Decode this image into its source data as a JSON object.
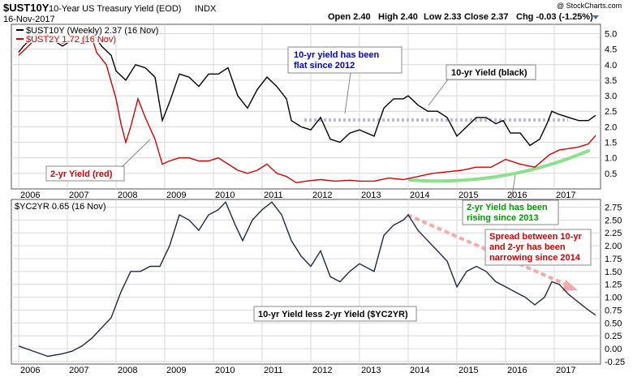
{
  "header": {
    "symbol": "$UST10Y",
    "name": "10-Year US Treasury Yield (EOD)",
    "exchange": "INDX",
    "date": "16-Nov-2017",
    "open": "Open 2.40",
    "high": "High 2.40",
    "low": "Low 2.33",
    "close": "Close 2.37",
    "chg": "Chg -0.03 (-1.25%)",
    "watermark": "@ StockCharts.com"
  },
  "colors": {
    "ust10": "#000000",
    "ust2": "#d60000",
    "spread": "#1f2a44",
    "flat_line": "#b9b9ee",
    "rising_arc": "#8de08d",
    "narrow_arrow": "#f6a9a9",
    "blue_text": "#0000cc",
    "red_text": "#d60000",
    "green_text": "#009900",
    "grid": "#d8d8d8"
  },
  "chart_data": [
    {
      "type": "line",
      "title": "10-Year US Treasury Yield (EOD)",
      "legend": [
        "$UST10Y (Weekly) 2.37 (16 Nov)",
        "$UST2Y 1.72 (16 Nov)"
      ],
      "x_ticks": [
        "2006",
        "2007",
        "2008",
        "2009",
        "2010",
        "2011",
        "2012",
        "2013",
        "2014",
        "2015",
        "2016",
        "2017"
      ],
      "y_ticks": [
        "0.5",
        "1.0",
        "1.5",
        "2.0",
        "2.5",
        "3.0",
        "3.5",
        "4.0",
        "4.5",
        "5.0"
      ],
      "ylim": [
        0,
        5.3
      ],
      "series": [
        {
          "name": "$UST10Y",
          "points": [
            [
              2006.0,
              4.4
            ],
            [
              2006.1,
              4.6
            ],
            [
              2006.3,
              4.9
            ],
            [
              2006.5,
              5.1
            ],
            [
              2006.7,
              4.8
            ],
            [
              2006.9,
              4.6
            ],
            [
              2007.1,
              4.8
            ],
            [
              2007.3,
              4.7
            ],
            [
              2007.5,
              5.1
            ],
            [
              2007.7,
              4.6
            ],
            [
              2007.9,
              4.3
            ],
            [
              2008.0,
              3.8
            ],
            [
              2008.2,
              3.5
            ],
            [
              2008.4,
              4.0
            ],
            [
              2008.6,
              3.9
            ],
            [
              2008.8,
              3.6
            ],
            [
              2008.95,
              2.2
            ],
            [
              2009.1,
              2.8
            ],
            [
              2009.3,
              3.7
            ],
            [
              2009.5,
              3.6
            ],
            [
              2009.7,
              3.3
            ],
            [
              2009.9,
              3.7
            ],
            [
              2010.1,
              3.7
            ],
            [
              2010.3,
              3.9
            ],
            [
              2010.5,
              3.0
            ],
            [
              2010.7,
              2.6
            ],
            [
              2010.9,
              3.2
            ],
            [
              2011.1,
              3.6
            ],
            [
              2011.3,
              3.3
            ],
            [
              2011.5,
              2.9
            ],
            [
              2011.6,
              2.2
            ],
            [
              2011.8,
              2.0
            ],
            [
              2012.0,
              1.9
            ],
            [
              2012.2,
              2.3
            ],
            [
              2012.4,
              1.6
            ],
            [
              2012.6,
              1.5
            ],
            [
              2012.8,
              1.8
            ],
            [
              2013.0,
              1.9
            ],
            [
              2013.3,
              1.7
            ],
            [
              2013.5,
              2.6
            ],
            [
              2013.7,
              2.9
            ],
            [
              2013.9,
              2.9
            ],
            [
              2014.0,
              3.0
            ],
            [
              2014.2,
              2.7
            ],
            [
              2014.4,
              2.5
            ],
            [
              2014.6,
              2.5
            ],
            [
              2014.8,
              2.3
            ],
            [
              2015.0,
              1.7
            ],
            [
              2015.2,
              2.0
            ],
            [
              2015.4,
              2.3
            ],
            [
              2015.6,
              2.3
            ],
            [
              2015.8,
              2.1
            ],
            [
              2015.95,
              2.2
            ],
            [
              2016.1,
              1.8
            ],
            [
              2016.3,
              1.8
            ],
            [
              2016.5,
              1.4
            ],
            [
              2016.7,
              1.6
            ],
            [
              2016.85,
              2.1
            ],
            [
              2016.95,
              2.5
            ],
            [
              2017.1,
              2.4
            ],
            [
              2017.3,
              2.3
            ],
            [
              2017.5,
              2.2
            ],
            [
              2017.7,
              2.2
            ],
            [
              2017.85,
              2.37
            ]
          ]
        },
        {
          "name": "$UST2Y",
          "points": [
            [
              2006.0,
              4.3
            ],
            [
              2006.2,
              4.6
            ],
            [
              2006.4,
              4.9
            ],
            [
              2006.5,
              5.1
            ],
            [
              2006.7,
              4.8
            ],
            [
              2006.9,
              4.7
            ],
            [
              2007.1,
              4.8
            ],
            [
              2007.3,
              4.7
            ],
            [
              2007.5,
              4.9
            ],
            [
              2007.6,
              4.4
            ],
            [
              2007.8,
              4.0
            ],
            [
              2008.0,
              2.9
            ],
            [
              2008.1,
              2.1
            ],
            [
              2008.2,
              1.5
            ],
            [
              2008.3,
              2.0
            ],
            [
              2008.45,
              2.9
            ],
            [
              2008.6,
              2.3
            ],
            [
              2008.8,
              1.6
            ],
            [
              2008.95,
              0.8
            ],
            [
              2009.1,
              0.9
            ],
            [
              2009.3,
              1.0
            ],
            [
              2009.5,
              1.0
            ],
            [
              2009.7,
              0.9
            ],
            [
              2009.9,
              0.9
            ],
            [
              2010.1,
              1.0
            ],
            [
              2010.3,
              0.8
            ],
            [
              2010.5,
              0.6
            ],
            [
              2010.7,
              0.5
            ],
            [
              2010.9,
              0.6
            ],
            [
              2011.1,
              0.8
            ],
            [
              2011.3,
              0.5
            ],
            [
              2011.5,
              0.4
            ],
            [
              2011.7,
              0.2
            ],
            [
              2011.9,
              0.25
            ],
            [
              2012.2,
              0.3
            ],
            [
              2012.5,
              0.25
            ],
            [
              2012.8,
              0.28
            ],
            [
              2013.0,
              0.25
            ],
            [
              2013.3,
              0.25
            ],
            [
              2013.6,
              0.35
            ],
            [
              2013.9,
              0.3
            ],
            [
              2014.2,
              0.4
            ],
            [
              2014.5,
              0.5
            ],
            [
              2014.8,
              0.55
            ],
            [
              2015.1,
              0.6
            ],
            [
              2015.4,
              0.7
            ],
            [
              2015.7,
              0.7
            ],
            [
              2016.0,
              0.95
            ],
            [
              2016.3,
              0.8
            ],
            [
              2016.6,
              0.7
            ],
            [
              2016.9,
              1.1
            ],
            [
              2017.1,
              1.25
            ],
            [
              2017.3,
              1.3
            ],
            [
              2017.5,
              1.35
            ],
            [
              2017.7,
              1.45
            ],
            [
              2017.85,
              1.72
            ]
          ]
        }
      ],
      "annotations": {
        "flat": [
          "10-yr yield has been",
          "flat since 2012"
        ],
        "ten_year": "10-yr Yield (black)",
        "two_year": "2-yr Yield (red)",
        "rising": [
          "2-yr Yield has been",
          "rising since 2013"
        ]
      }
    },
    {
      "type": "line",
      "legend": "$YC2YR 0.65 (16 Nov)",
      "x_ticks": [
        "2006",
        "2007",
        "2008",
        "2009",
        "2010",
        "2011",
        "2012",
        "2013",
        "2014",
        "2015",
        "2016",
        "2017"
      ],
      "y_ticks": [
        "-0.25",
        "0.00",
        "0.25",
        "0.50",
        "0.75",
        "1.00",
        "1.25",
        "1.50",
        "1.75",
        "2.00",
        "2.25",
        "2.50",
        "2.75"
      ],
      "ylim": [
        -0.3,
        2.9
      ],
      "series": [
        {
          "name": "$YC2YR",
          "points": [
            [
              2006.0,
              0.05
            ],
            [
              2006.3,
              -0.05
            ],
            [
              2006.6,
              -0.15
            ],
            [
              2006.9,
              -0.1
            ],
            [
              2007.1,
              -0.05
            ],
            [
              2007.3,
              0.05
            ],
            [
              2007.5,
              0.2
            ],
            [
              2007.7,
              0.4
            ],
            [
              2007.9,
              0.6
            ],
            [
              2008.1,
              1.1
            ],
            [
              2008.3,
              1.5
            ],
            [
              2008.5,
              1.5
            ],
            [
              2008.7,
              1.6
            ],
            [
              2008.9,
              1.6
            ],
            [
              2009.1,
              2.0
            ],
            [
              2009.3,
              2.6
            ],
            [
              2009.5,
              2.5
            ],
            [
              2009.7,
              2.3
            ],
            [
              2009.9,
              2.6
            ],
            [
              2010.1,
              2.7
            ],
            [
              2010.25,
              2.85
            ],
            [
              2010.45,
              2.4
            ],
            [
              2010.6,
              2.1
            ],
            [
              2010.8,
              2.5
            ],
            [
              2011.0,
              2.7
            ],
            [
              2011.2,
              2.85
            ],
            [
              2011.4,
              2.6
            ],
            [
              2011.6,
              2.1
            ],
            [
              2011.8,
              1.8
            ],
            [
              2012.0,
              1.6
            ],
            [
              2012.2,
              1.9
            ],
            [
              2012.4,
              1.4
            ],
            [
              2012.6,
              1.3
            ],
            [
              2012.8,
              1.5
            ],
            [
              2013.0,
              1.65
            ],
            [
              2013.3,
              1.5
            ],
            [
              2013.5,
              2.2
            ],
            [
              2013.7,
              2.4
            ],
            [
              2013.9,
              2.5
            ],
            [
              2014.0,
              2.6
            ],
            [
              2014.2,
              2.3
            ],
            [
              2014.4,
              2.1
            ],
            [
              2014.6,
              1.9
            ],
            [
              2014.8,
              1.7
            ],
            [
              2015.0,
              1.2
            ],
            [
              2015.2,
              1.5
            ],
            [
              2015.4,
              1.6
            ],
            [
              2015.6,
              1.5
            ],
            [
              2015.8,
              1.3
            ],
            [
              2016.0,
              1.2
            ],
            [
              2016.2,
              1.1
            ],
            [
              2016.4,
              1.0
            ],
            [
              2016.6,
              0.85
            ],
            [
              2016.8,
              1.0
            ],
            [
              2016.95,
              1.3
            ],
            [
              2017.1,
              1.25
            ],
            [
              2017.3,
              1.05
            ],
            [
              2017.5,
              0.9
            ],
            [
              2017.7,
              0.75
            ],
            [
              2017.85,
              0.65
            ]
          ]
        }
      ],
      "annotations": {
        "yc_label": "10-yr Yield less 2-yr Yield ($YC2YR)",
        "narrowing": [
          "Spread between 10-yr",
          "and 2-yr has been",
          "narrowing since 2014"
        ]
      }
    }
  ]
}
